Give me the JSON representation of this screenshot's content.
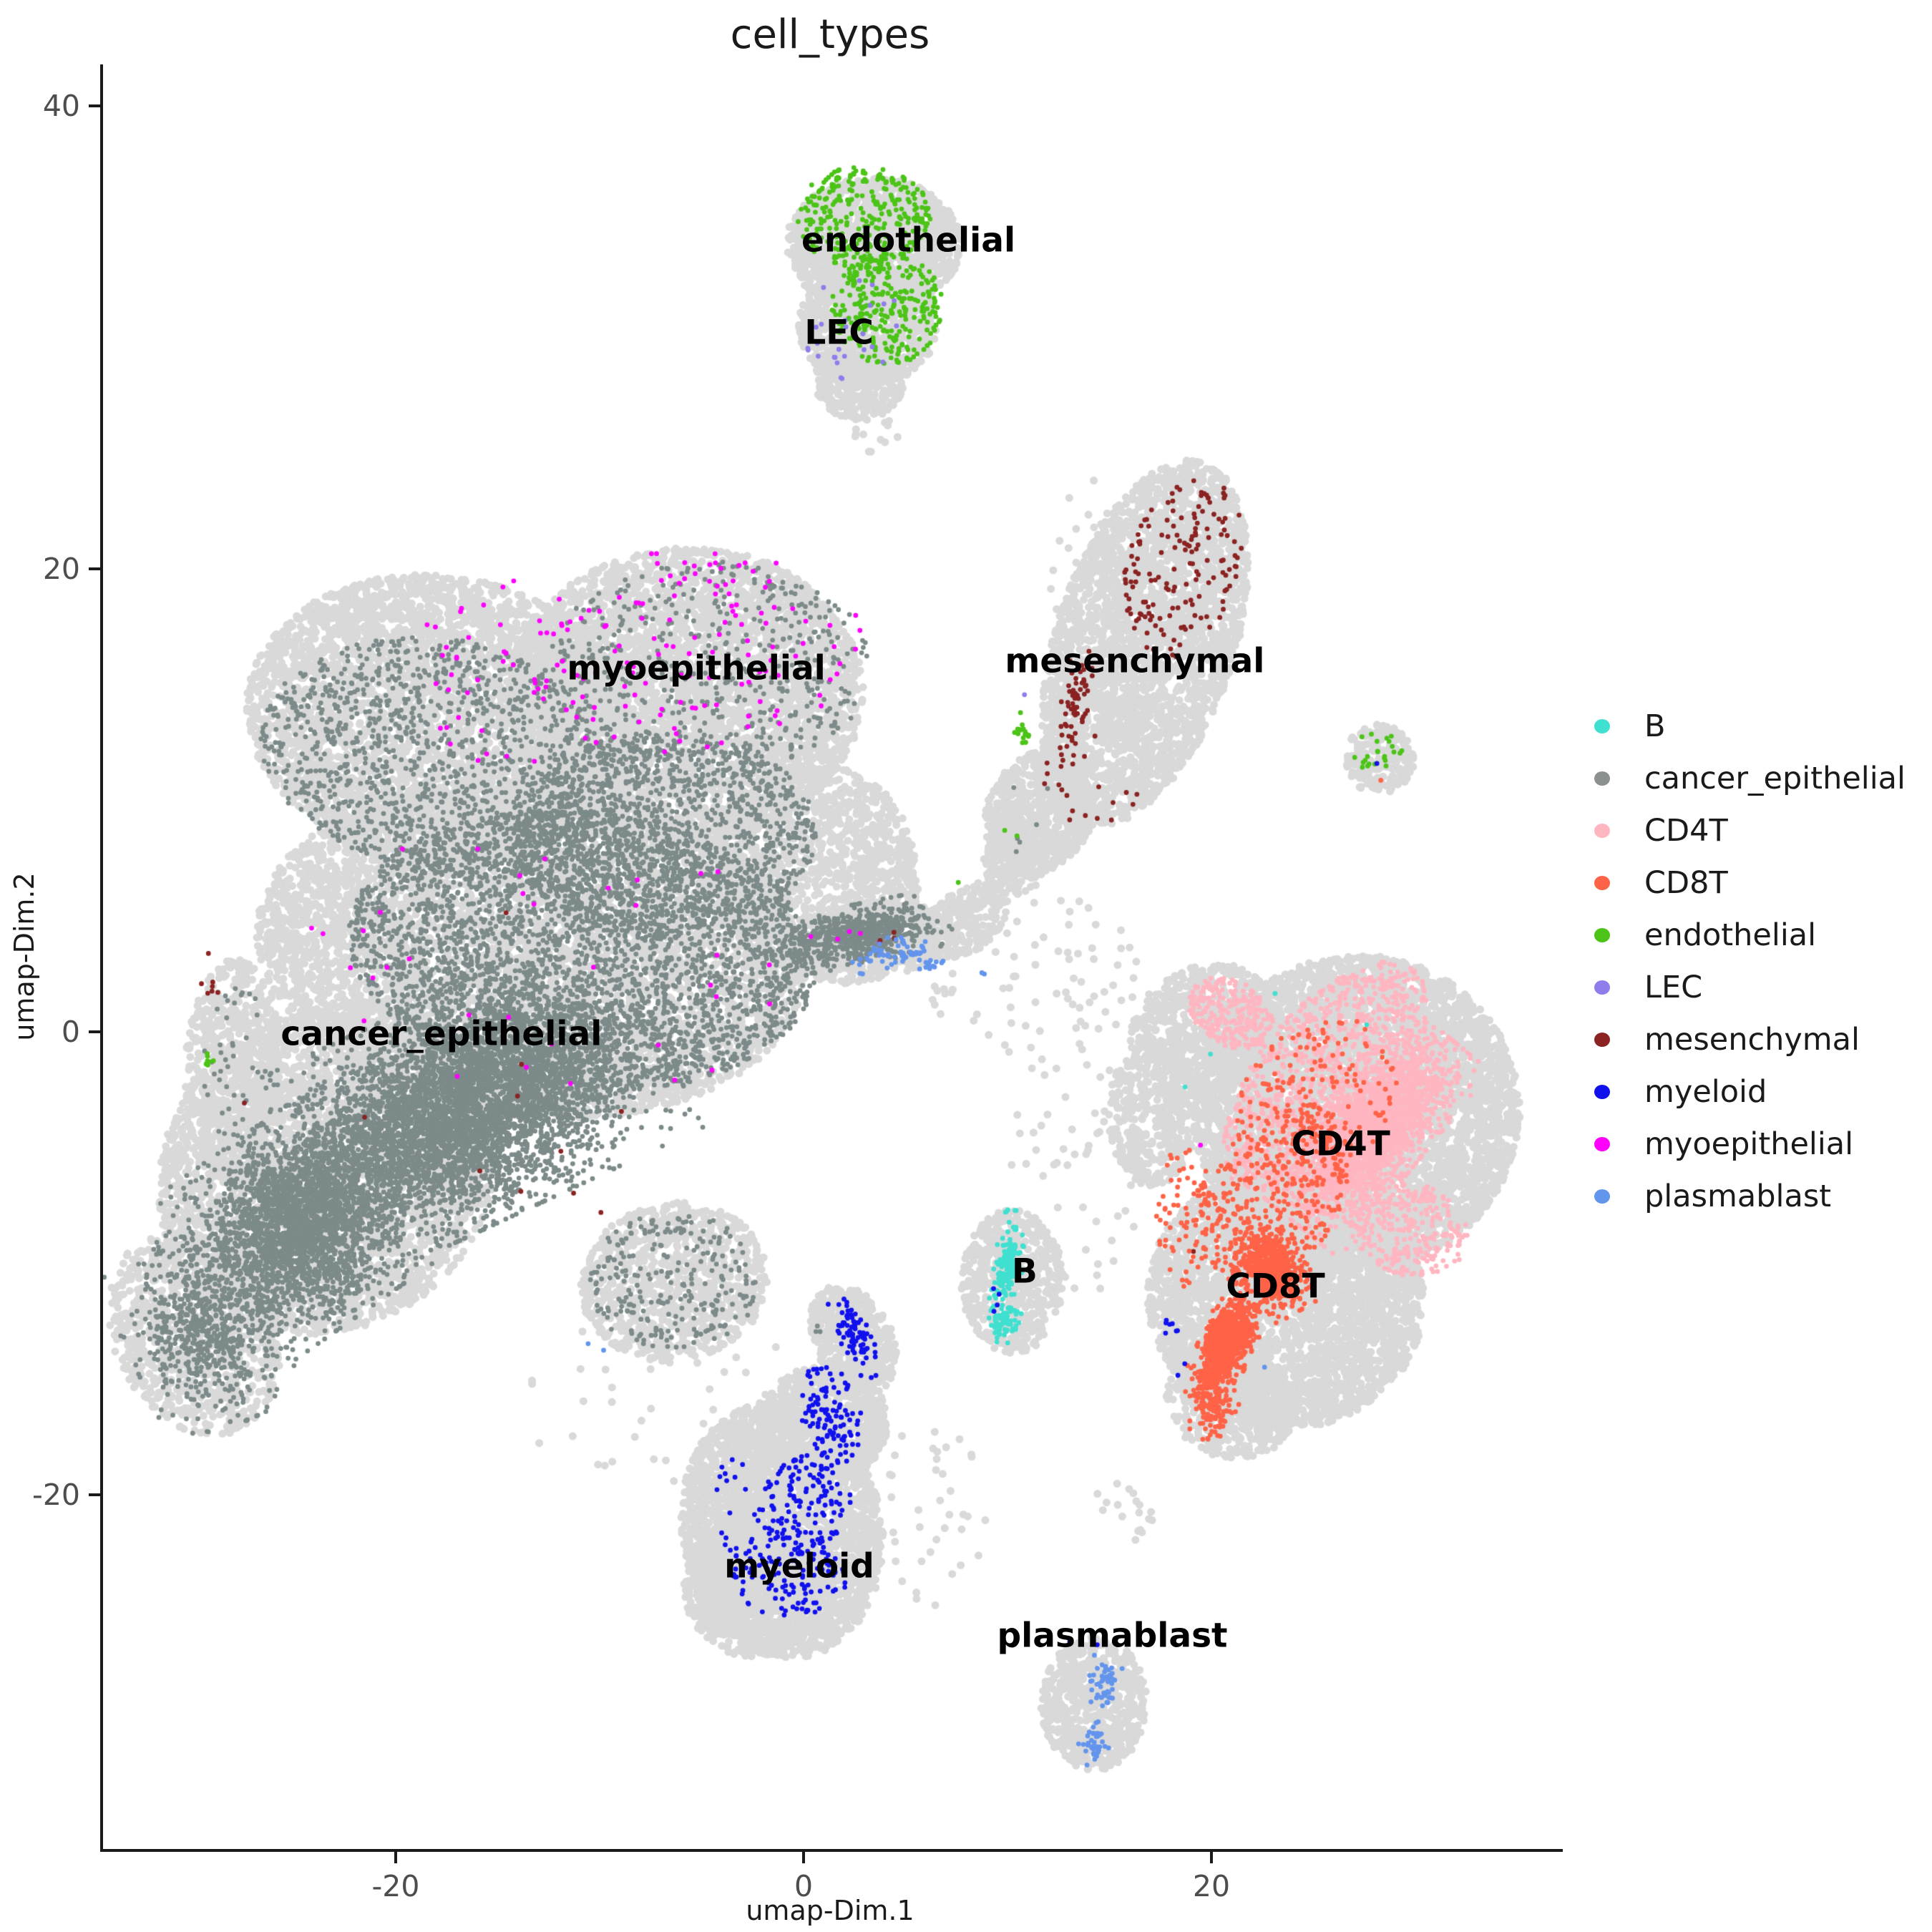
{
  "legend": {
    "items": [
      {
        "label": "B",
        "color": "#40E0D0"
      },
      {
        "label": "cancer_epithelial",
        "color": "#8A9190"
      },
      {
        "label": "CD4T",
        "color": "#FFB6C1"
      },
      {
        "label": "CD8T",
        "color": "#FF6347"
      },
      {
        "label": "endothelial",
        "color": "#4CC417"
      },
      {
        "label": "LEC",
        "color": "#8E7DEB"
      },
      {
        "label": "mesenchymal",
        "color": "#8B2323"
      },
      {
        "label": "myeloid",
        "color": "#1111EE"
      },
      {
        "label": "myoepithelial",
        "color": "#FF00FF"
      },
      {
        "label": "plasmablast",
        "color": "#6495ED"
      }
    ]
  },
  "chart_data": {
    "type": "scatter",
    "title": "cell_types",
    "xlabel": "umap-Dim.1",
    "ylabel": "umap-Dim.2",
    "xlim": [
      -34.5,
      37.1
    ],
    "ylim": [
      -35.3,
      41.8
    ],
    "x_ticks": [
      -20,
      0,
      20
    ],
    "y_ticks": [
      -20,
      0,
      20,
      40
    ],
    "grid": false,
    "legend_position": "right",
    "background_color": "#D9D9D9",
    "point_radius": {
      "background": 5.5,
      "highlight": 3.4
    },
    "blob_schema": [
      "cx",
      "cy",
      "rx",
      "ry",
      "rot_deg",
      "n",
      "dist(u=uniform,g=gauss)"
    ],
    "background_blobs": [
      [
        3.3,
        34.0,
        4.3,
        2.9,
        0,
        1400,
        "u"
      ],
      [
        3.0,
        30.5,
        3.4,
        2.6,
        0,
        800,
        "u"
      ],
      [
        2.6,
        28.2,
        2.2,
        1.8,
        0,
        350,
        "u"
      ],
      [
        -18.0,
        13.5,
        9.5,
        6.2,
        8,
        4200,
        "u"
      ],
      [
        -6.0,
        14.5,
        8.8,
        6.4,
        -5,
        4200,
        "u"
      ],
      [
        -13.5,
        3.5,
        13.5,
        7.2,
        6,
        6200,
        "u"
      ],
      [
        -23.5,
        -6.0,
        8.6,
        6.8,
        -38,
        3300,
        "u"
      ],
      [
        -30.0,
        -13.0,
        4.0,
        4.6,
        -25,
        900,
        "u"
      ],
      [
        0.5,
        7.0,
        5.0,
        4.6,
        -25,
        1300,
        "u"
      ],
      [
        -6.5,
        -10.8,
        4.6,
        3.4,
        -10,
        900,
        "u"
      ],
      [
        3.0,
        3.9,
        4.4,
        1.7,
        -10,
        550,
        "u"
      ],
      [
        7.8,
        4.8,
        2.4,
        1.3,
        -38,
        220,
        "u"
      ],
      [
        -28.1,
        -1.6,
        2.4,
        4.8,
        3,
        650,
        "u"
      ],
      [
        16.6,
        16.8,
        4.4,
        8.2,
        18,
        3000,
        "u"
      ],
      [
        11.5,
        9.5,
        2.6,
        2.8,
        30,
        700,
        "u"
      ],
      [
        10.2,
        7.3,
        1.6,
        1.4,
        0,
        200,
        "u"
      ],
      [
        28.1,
        11.8,
        1.7,
        1.5,
        0,
        210,
        "u"
      ],
      [
        27.0,
        -3.5,
        8.0,
        6.8,
        -10,
        5200,
        "u"
      ],
      [
        23.5,
        -11.5,
        6.8,
        5.6,
        10,
        3400,
        "u"
      ],
      [
        19.5,
        0.0,
        3.8,
        2.8,
        -30,
        700,
        "u"
      ],
      [
        20.8,
        -16.0,
        3.2,
        2.4,
        20,
        500,
        "u"
      ],
      [
        17.0,
        -3.5,
        2.2,
        3.2,
        0,
        400,
        "u"
      ],
      [
        10.1,
        -10.8,
        2.5,
        3.1,
        0,
        550,
        "u"
      ],
      [
        -1.2,
        -21.5,
        4.9,
        5.6,
        -10,
        2800,
        "u"
      ],
      [
        2.3,
        -13.3,
        1.9,
        2.5,
        -28,
        500,
        "u"
      ],
      [
        0.8,
        -17.0,
        3.2,
        2.6,
        -15,
        800,
        "u"
      ],
      [
        -2.6,
        -24.0,
        3.4,
        3.0,
        0,
        700,
        "u"
      ],
      [
        14.1,
        -29.0,
        2.6,
        2.9,
        0,
        620,
        "u"
      ],
      [
        -5.0,
        -16.0,
        10.0,
        4.0,
        0,
        70,
        "u"
      ],
      [
        13.5,
        -5.5,
        3.5,
        6.0,
        0,
        70,
        "u"
      ],
      [
        11.0,
        2.5,
        5.5,
        3.5,
        0,
        80,
        "u"
      ],
      [
        14.0,
        19.0,
        2.5,
        5.0,
        0,
        40,
        "u"
      ],
      [
        6.0,
        -21.0,
        3.0,
        4.0,
        0,
        40,
        "u"
      ],
      [
        3.4,
        25.8,
        1.2,
        0.8,
        0,
        12,
        "u"
      ],
      [
        16.0,
        -20.5,
        2.0,
        1.5,
        0,
        18,
        "u"
      ]
    ],
    "highlight_groups": [
      {
        "name": "cancer_epithelial",
        "color": "#7D8A8A",
        "blobs": [
          [
            -17.0,
            -3.5,
            10.5,
            5.0,
            -25,
            5200,
            "g"
          ],
          [
            -25.0,
            -8.5,
            6.0,
            4.6,
            -35,
            2600,
            "g"
          ],
          [
            -11.0,
            3.5,
            11.5,
            6.0,
            6,
            3300,
            "u"
          ],
          [
            -18.0,
            12.0,
            8.8,
            5.0,
            8,
            1300,
            "u"
          ],
          [
            -7.0,
            8.5,
            7.5,
            4.5,
            0,
            1300,
            "u"
          ],
          [
            2.5,
            4.2,
            4.6,
            1.3,
            -11,
            650,
            "g"
          ],
          [
            -5.0,
            15.5,
            8.2,
            4.8,
            -5,
            520,
            "u"
          ],
          [
            -29.5,
            -13.0,
            3.8,
            4.2,
            -25,
            650,
            "g"
          ],
          [
            -6.5,
            -10.8,
            4.2,
            3.0,
            0,
            260,
            "u"
          ],
          [
            -28.0,
            -1.5,
            1.8,
            3.5,
            0,
            40,
            "u"
          ],
          [
            11.0,
            9.0,
            1.5,
            2.0,
            0,
            6,
            "u"
          ],
          [
            0.5,
            -12.5,
            1.0,
            0.5,
            0,
            3,
            "u"
          ]
        ]
      },
      {
        "name": "myoepithelial",
        "color": "#FF00FF",
        "blobs": [
          [
            -5.5,
            16.5,
            8.2,
            4.4,
            -5,
            130,
            "u"
          ],
          [
            -14.0,
            15.5,
            5.5,
            4.2,
            0,
            45,
            "u"
          ],
          [
            -13.0,
            3.0,
            12.0,
            6.5,
            0,
            35,
            "u"
          ],
          [
            2.5,
            4.15,
            2.6,
            0.35,
            0,
            5,
            "u"
          ],
          [
            19.3,
            -4.9,
            0.1,
            0.1,
            0,
            1,
            "u"
          ]
        ]
      },
      {
        "name": "endothelial",
        "color": "#4CC417",
        "blobs": [
          [
            2.8,
            35.2,
            3.3,
            2.2,
            0,
            300,
            "u"
          ],
          [
            4.0,
            31.2,
            2.8,
            2.4,
            0,
            280,
            "u"
          ],
          [
            10.6,
            12.9,
            0.55,
            1.1,
            0,
            16,
            "g"
          ],
          [
            10.1,
            8.8,
            0.4,
            0.5,
            0,
            2,
            "u"
          ],
          [
            28.0,
            12.1,
            1.2,
            0.9,
            0,
            24,
            "u"
          ],
          [
            -29.4,
            -1.35,
            0.4,
            0.5,
            0,
            7,
            "g"
          ],
          [
            7.5,
            6.3,
            0.2,
            0.2,
            0,
            1,
            "u"
          ]
        ]
      },
      {
        "name": "LEC",
        "color": "#8E7DEB",
        "blobs": [
          [
            2.2,
            30.3,
            2.6,
            2.2,
            0,
            26,
            "u"
          ],
          [
            10.7,
            14.6,
            0.1,
            0.1,
            0,
            1,
            "u"
          ]
        ]
      },
      {
        "name": "mesenchymal",
        "color": "#8B2323",
        "blobs": [
          [
            18.5,
            20.0,
            2.8,
            4.0,
            18,
            160,
            "u"
          ],
          [
            13.2,
            14.3,
            0.7,
            2.8,
            8,
            60,
            "g"
          ],
          [
            14.0,
            10.8,
            2.6,
            2.0,
            0,
            22,
            "u"
          ],
          [
            -29.2,
            2.2,
            0.55,
            1.3,
            0,
            7,
            "g"
          ],
          [
            -27.6,
            -3.1,
            0.2,
            0.3,
            0,
            1,
            "u"
          ],
          [
            -12.0,
            0.0,
            12.0,
            8.0,
            0,
            10,
            "u"
          ],
          [
            3.6,
            4.1,
            0.8,
            0.4,
            0,
            3,
            "u"
          ],
          [
            19.0,
            -9.5,
            0.1,
            0.1,
            0,
            1,
            "u"
          ]
        ]
      },
      {
        "name": "CD4T",
        "color": "#FFB6C1",
        "blobs": [
          [
            27.8,
            -4.3,
            2.6,
            5.2,
            39,
            2500,
            "g"
          ],
          [
            25.5,
            -2.0,
            3.4,
            6.0,
            39,
            1000,
            "u"
          ],
          [
            20.8,
            0.8,
            2.2,
            1.4,
            30,
            280,
            "u"
          ],
          [
            29.5,
            -8.5,
            3.0,
            2.0,
            20,
            300,
            "u"
          ]
        ]
      },
      {
        "name": "CD8T",
        "color": "#FF6347",
        "blobs": [
          [
            22.8,
            -10.2,
            1.6,
            2.2,
            -30,
            600,
            "g"
          ],
          [
            20.6,
            -13.5,
            1.3,
            2.6,
            25,
            900,
            "g"
          ],
          [
            23.0,
            -7.0,
            3.2,
            4.2,
            30,
            350,
            "u"
          ],
          [
            25.0,
            -3.0,
            3.5,
            4.0,
            39,
            180,
            "u"
          ],
          [
            20.0,
            -16.2,
            1.2,
            1.4,
            0,
            130,
            "g"
          ],
          [
            18.5,
            -8.0,
            1.5,
            3.0,
            0,
            80,
            "u"
          ],
          [
            28.2,
            10.9,
            0.1,
            0.1,
            0,
            1,
            "u"
          ]
        ]
      },
      {
        "name": "B",
        "color": "#40E0D0",
        "blobs": [
          [
            9.9,
            -10.0,
            0.7,
            2.3,
            5,
            140,
            "g"
          ],
          [
            9.7,
            -12.5,
            1.0,
            1.0,
            0,
            70,
            "g"
          ],
          [
            24.0,
            -2.0,
            6.0,
            4.0,
            0,
            4,
            "u"
          ]
        ]
      },
      {
        "name": "myeloid",
        "color": "#1111EE",
        "blobs": [
          [
            2.4,
            -13.2,
            1.0,
            1.9,
            -25,
            80,
            "g"
          ],
          [
            1.2,
            -16.5,
            1.5,
            2.2,
            -15,
            110,
            "u"
          ],
          [
            0.0,
            -20.5,
            2.2,
            2.2,
            0,
            130,
            "u"
          ],
          [
            -0.8,
            -23.5,
            2.8,
            1.8,
            0,
            120,
            "u"
          ],
          [
            -3.2,
            -20.5,
            1.6,
            2.2,
            0,
            25,
            "u"
          ],
          [
            9.0,
            -11.8,
            0.6,
            1.1,
            0,
            4,
            "u"
          ],
          [
            17.9,
            -12.8,
            0.5,
            0.6,
            0,
            7,
            "g"
          ],
          [
            18.3,
            -14.5,
            0.3,
            0.4,
            0,
            2,
            "u"
          ],
          [
            13.4,
            -26.5,
            1.0,
            0.25,
            0,
            2,
            "u"
          ],
          [
            28.05,
            11.6,
            0.1,
            0.1,
            0,
            1,
            "u"
          ]
        ]
      },
      {
        "name": "plasmablast",
        "color": "#6495ED",
        "blobs": [
          [
            14.6,
            -28.3,
            0.8,
            1.5,
            10,
            48,
            "g"
          ],
          [
            14.1,
            -30.8,
            0.8,
            1.0,
            0,
            40,
            "g"
          ],
          [
            4.5,
            3.4,
            2.6,
            0.8,
            -8,
            55,
            "g"
          ],
          [
            6.0,
            2.9,
            0.7,
            0.35,
            0,
            14,
            "g"
          ],
          [
            8.7,
            2.5,
            0.2,
            0.2,
            0,
            2,
            "u"
          ],
          [
            22.4,
            -14.5,
            0.1,
            0.1,
            0,
            1,
            "u"
          ],
          [
            -10.0,
            -13.5,
            0.8,
            0.4,
            0,
            2,
            "u"
          ]
        ]
      }
    ],
    "cluster_labels": [
      {
        "text": "endothelial",
        "x": 5.0,
        "y": 34.2
      },
      {
        "text": "LEC",
        "x": 1.6,
        "y": 30.2
      },
      {
        "text": "myoepithelial",
        "x": -5.4,
        "y": 15.7
      },
      {
        "text": "mesenchymal",
        "x": 16.1,
        "y": 16.0
      },
      {
        "text": "cancer_epithelial",
        "x": -17.9,
        "y": -0.1
      },
      {
        "text": "CD4T",
        "x": 26.2,
        "y": -4.85
      },
      {
        "text": "CD8T",
        "x": 23.0,
        "y": -11.0
      },
      {
        "text": "B",
        "x": 10.7,
        "y": -10.35
      },
      {
        "text": "myeloid",
        "x": -0.35,
        "y": -23.1
      },
      {
        "text": "plasmablast",
        "x": 15.0,
        "y": -26.1
      }
    ]
  }
}
